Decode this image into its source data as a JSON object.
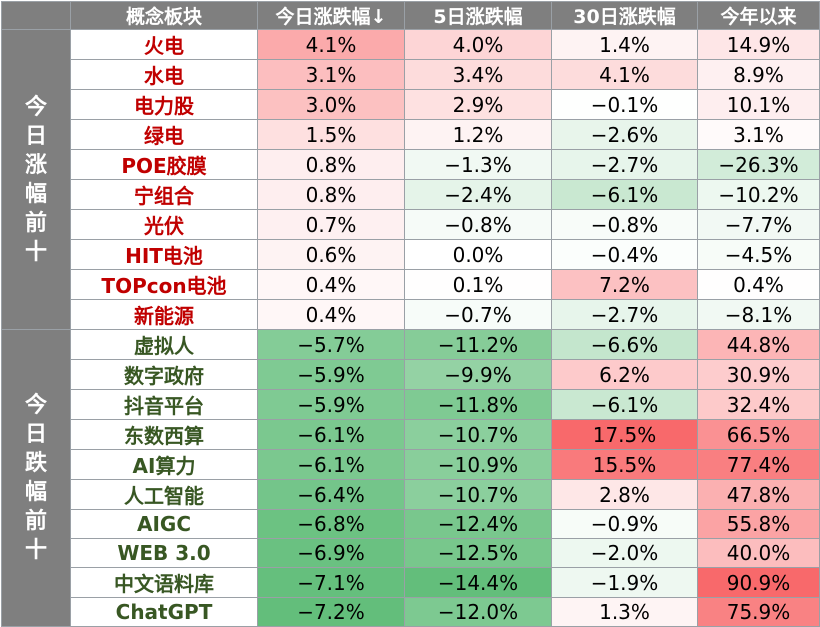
{
  "header": {
    "blank": "",
    "name": "概念板块",
    "today": "今日涨跌幅↓",
    "d5": "5日涨跌幅",
    "d30": "30日涨跌幅",
    "ytd": "今年以来"
  },
  "groups": {
    "gainers": [
      "今",
      "日",
      "涨",
      "幅",
      "前",
      "十"
    ],
    "losers": [
      "今",
      "日",
      "跌",
      "幅",
      "前",
      "十"
    ]
  },
  "rows": [
    {
      "name": "火电",
      "today": "4.1%",
      "d5": "4.0%",
      "d30": "1.4%",
      "ytd": "14.9%"
    },
    {
      "name": "水电",
      "today": "3.1%",
      "d5": "3.4%",
      "d30": "4.1%",
      "ytd": "8.9%"
    },
    {
      "name": "电力股",
      "today": "3.0%",
      "d5": "2.9%",
      "d30": "−0.1%",
      "ytd": "10.1%"
    },
    {
      "name": "绿电",
      "today": "1.5%",
      "d5": "1.2%",
      "d30": "−2.6%",
      "ytd": "3.1%"
    },
    {
      "name": "POE胶膜",
      "today": "0.8%",
      "d5": "−1.3%",
      "d30": "−2.7%",
      "ytd": "−26.3%"
    },
    {
      "name": "宁组合",
      "today": "0.8%",
      "d5": "−2.4%",
      "d30": "−6.1%",
      "ytd": "−10.2%"
    },
    {
      "name": "光伏",
      "today": "0.7%",
      "d5": "−0.8%",
      "d30": "−0.8%",
      "ytd": "−7.7%"
    },
    {
      "name": "HIT电池",
      "today": "0.6%",
      "d5": "0.0%",
      "d30": "−0.4%",
      "ytd": "−4.5%"
    },
    {
      "name": "TOPcon电池",
      "today": "0.4%",
      "d5": "0.1%",
      "d30": "7.2%",
      "ytd": "0.4%"
    },
    {
      "name": "新能源",
      "today": "0.4%",
      "d5": "−0.7%",
      "d30": "−2.7%",
      "ytd": "−8.1%"
    },
    {
      "name": "虚拟人",
      "today": "−5.7%",
      "d5": "−11.2%",
      "d30": "−6.6%",
      "ytd": "44.8%"
    },
    {
      "name": "数字政府",
      "today": "−5.9%",
      "d5": "−9.9%",
      "d30": "6.2%",
      "ytd": "30.9%"
    },
    {
      "name": "抖音平台",
      "today": "−5.9%",
      "d5": "−11.8%",
      "d30": "−6.1%",
      "ytd": "32.4%"
    },
    {
      "name": "东数西算",
      "today": "−6.1%",
      "d5": "−10.7%",
      "d30": "17.5%",
      "ytd": "66.5%"
    },
    {
      "name": "AI算力",
      "today": "−6.1%",
      "d5": "−10.9%",
      "d30": "15.5%",
      "ytd": "77.4%"
    },
    {
      "name": "人工智能",
      "today": "−6.4%",
      "d5": "−10.7%",
      "d30": "2.8%",
      "ytd": "47.8%"
    },
    {
      "name": "AIGC",
      "today": "−6.8%",
      "d5": "−12.4%",
      "d30": "−0.9%",
      "ytd": "55.8%"
    },
    {
      "name": "WEB 3.0",
      "today": "−6.9%",
      "d5": "−12.5%",
      "d30": "−2.0%",
      "ytd": "40.0%"
    },
    {
      "name": "中文语料库",
      "today": "−7.1%",
      "d5": "−14.4%",
      "d30": "−1.9%",
      "ytd": "90.9%"
    },
    {
      "name": "ChatGPT",
      "today": "−7.2%",
      "d5": "−12.0%",
      "d30": "1.3%",
      "ytd": "75.9%"
    }
  ]
}
